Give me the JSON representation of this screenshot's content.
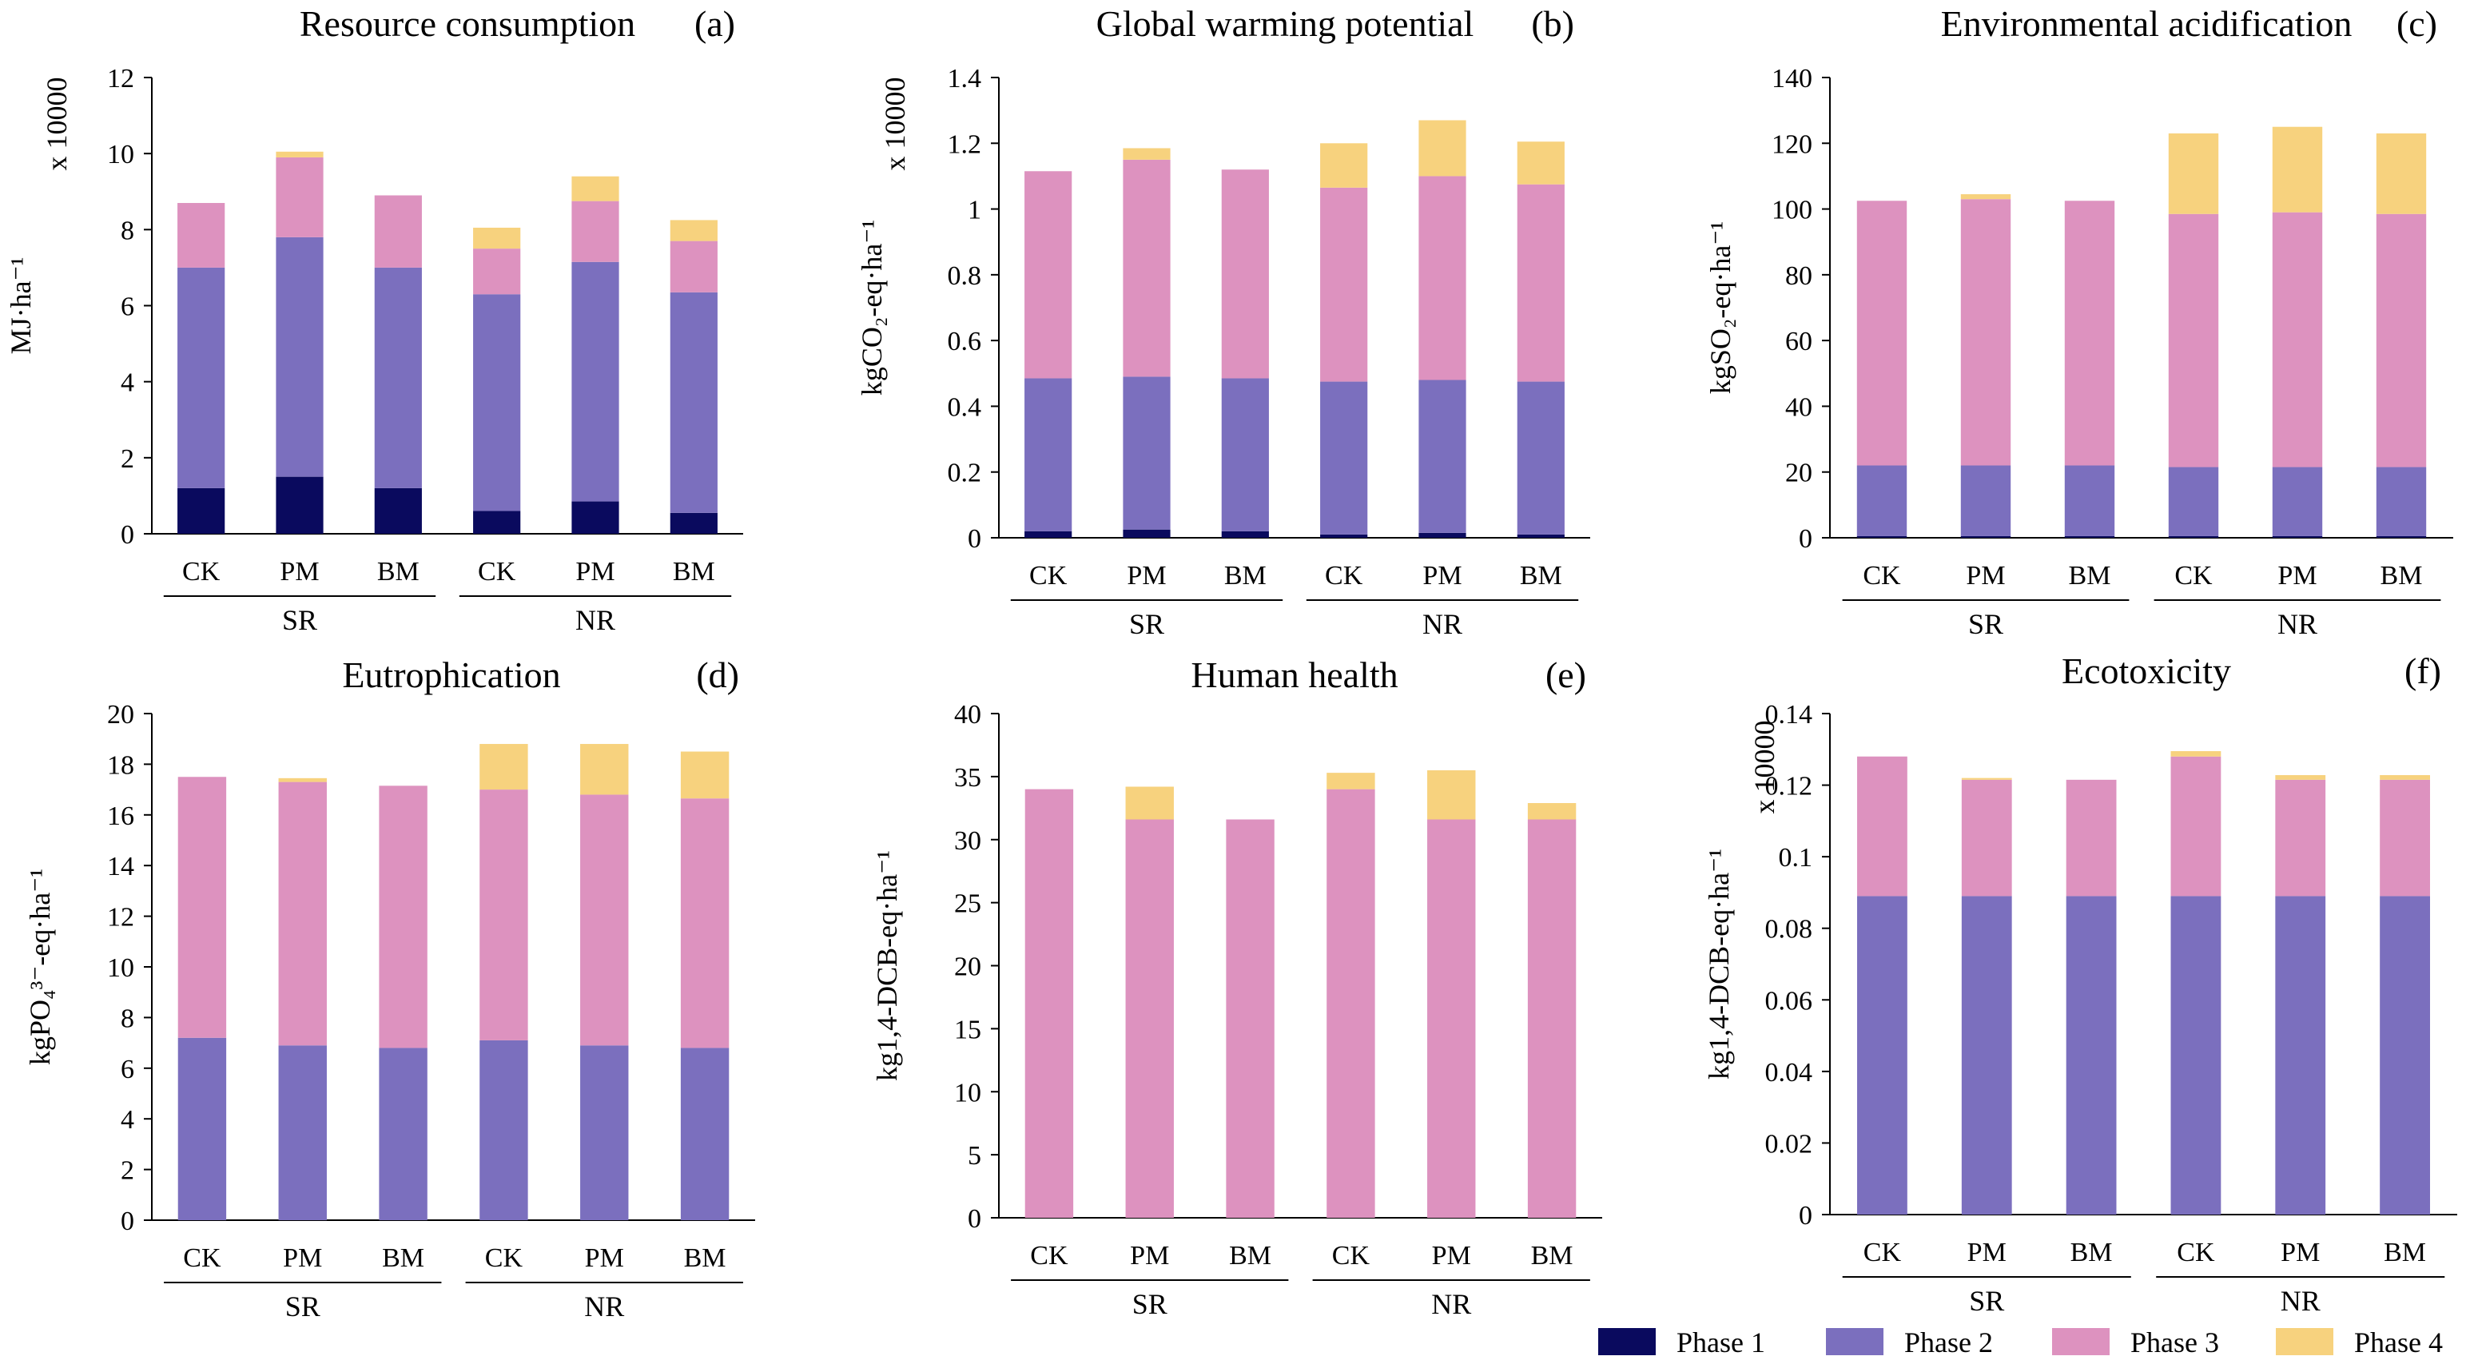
{
  "legend": [
    "Phase 1",
    "Phase 2",
    "Phase 3",
    "Phase 4"
  ],
  "colors": {
    "phase1": "#0a0a5e",
    "phase2": "#7b6fbe",
    "phase3": "#dd92bf",
    "phase4": "#f7d27e"
  },
  "chart_data": [
    {
      "id": "a",
      "type": "bar",
      "stacked": true,
      "panel_label": "(a)",
      "title": "Resource consumption",
      "ylabel": "MJ·ha⁻¹",
      "multiplier": "x 10000",
      "ylim": [
        0,
        12
      ],
      "yticks": [
        0,
        2,
        4,
        6,
        8,
        10,
        12
      ],
      "ytick_labels": [
        "0",
        "2",
        "4",
        "6",
        "8",
        "10",
        "12"
      ],
      "categories": [
        "CK",
        "PM",
        "BM",
        "CK",
        "PM",
        "BM"
      ],
      "groups": [
        {
          "label": "SR",
          "span": [
            0,
            2
          ]
        },
        {
          "label": "NR",
          "span": [
            3,
            5
          ]
        }
      ],
      "series": [
        {
          "name": "Phase 1",
          "values": [
            1.2,
            1.5,
            1.2,
            0.6,
            0.85,
            0.55
          ]
        },
        {
          "name": "Phase 2",
          "values": [
            5.8,
            6.3,
            5.8,
            5.7,
            6.3,
            5.8
          ]
        },
        {
          "name": "Phase 3",
          "values": [
            1.7,
            2.1,
            1.9,
            1.2,
            1.6,
            1.35
          ]
        },
        {
          "name": "Phase 4",
          "values": [
            0,
            0.15,
            0,
            0.55,
            0.65,
            0.55
          ]
        }
      ]
    },
    {
      "id": "b",
      "type": "bar",
      "stacked": true,
      "panel_label": "(b)",
      "title": "Global warming potential",
      "ylabel": "kgCO₂-eq·ha⁻¹",
      "multiplier": "x 10000",
      "ylim": [
        0,
        1.4
      ],
      "yticks": [
        0,
        0.2,
        0.4,
        0.6,
        0.8,
        1.0,
        1.2,
        1.4
      ],
      "ytick_labels": [
        "0",
        "0.2",
        "0.4",
        "0.6",
        "0.8",
        "1",
        "1.2",
        "1.4"
      ],
      "categories": [
        "CK",
        "PM",
        "BM",
        "CK",
        "PM",
        "BM"
      ],
      "groups": [
        {
          "label": "SR",
          "span": [
            0,
            2
          ]
        },
        {
          "label": "NR",
          "span": [
            3,
            5
          ]
        }
      ],
      "series": [
        {
          "name": "Phase 1",
          "values": [
            0.02,
            0.025,
            0.02,
            0.01,
            0.015,
            0.01
          ]
        },
        {
          "name": "Phase 2",
          "values": [
            0.465,
            0.465,
            0.465,
            0.465,
            0.465,
            0.465
          ]
        },
        {
          "name": "Phase 3",
          "values": [
            0.63,
            0.66,
            0.635,
            0.59,
            0.62,
            0.6
          ]
        },
        {
          "name": "Phase 4",
          "values": [
            0,
            0.035,
            0,
            0.135,
            0.17,
            0.13
          ]
        }
      ]
    },
    {
      "id": "c",
      "type": "bar",
      "stacked": true,
      "panel_label": "(c)",
      "title": "Environmental acidification",
      "ylabel": "kgSO₂-eq·ha⁻¹",
      "multiplier": "",
      "ylim": [
        0,
        140
      ],
      "yticks": [
        0,
        20,
        40,
        60,
        80,
        100,
        120,
        140
      ],
      "ytick_labels": [
        "0",
        "20",
        "40",
        "60",
        "80",
        "100",
        "120",
        "140"
      ],
      "categories": [
        "CK",
        "PM",
        "BM",
        "CK",
        "PM",
        "BM"
      ],
      "groups": [
        {
          "label": "SR",
          "span": [
            0,
            2
          ]
        },
        {
          "label": "NR",
          "span": [
            3,
            5
          ]
        }
      ],
      "series": [
        {
          "name": "Phase 1",
          "values": [
            0.5,
            0.5,
            0.5,
            0.5,
            0.5,
            0.5
          ]
        },
        {
          "name": "Phase 2",
          "values": [
            21.5,
            21.5,
            21.5,
            21.0,
            21.0,
            21.0
          ]
        },
        {
          "name": "Phase 3",
          "values": [
            80.5,
            81.0,
            80.5,
            77.0,
            77.5,
            77.0
          ]
        },
        {
          "name": "Phase 4",
          "values": [
            0,
            1.5,
            0,
            24.5,
            26.0,
            24.5
          ]
        }
      ]
    },
    {
      "id": "d",
      "type": "bar",
      "stacked": true,
      "panel_label": "(d)",
      "title": "Eutrophication",
      "ylabel": "kgPO₄³⁻-eq·ha⁻¹",
      "multiplier": "",
      "ylim": [
        0,
        20
      ],
      "yticks": [
        0,
        2,
        4,
        6,
        8,
        10,
        12,
        14,
        16,
        18,
        20
      ],
      "ytick_labels": [
        "0",
        "2",
        "4",
        "6",
        "8",
        "10",
        "12",
        "14",
        "16",
        "18",
        "20"
      ],
      "categories": [
        "CK",
        "PM",
        "BM",
        "CK",
        "PM",
        "BM"
      ],
      "groups": [
        {
          "label": "SR",
          "span": [
            0,
            2
          ]
        },
        {
          "label": "NR",
          "span": [
            3,
            5
          ]
        }
      ],
      "series": [
        {
          "name": "Phase 1",
          "values": [
            0,
            0,
            0,
            0,
            0,
            0
          ]
        },
        {
          "name": "Phase 2",
          "values": [
            7.2,
            6.9,
            6.8,
            7.1,
            6.9,
            6.8
          ]
        },
        {
          "name": "Phase 3",
          "values": [
            10.3,
            10.4,
            10.35,
            9.9,
            9.9,
            9.85
          ]
        },
        {
          "name": "Phase 4",
          "values": [
            0,
            0.15,
            0,
            1.8,
            2.0,
            1.85
          ]
        }
      ]
    },
    {
      "id": "e",
      "type": "bar",
      "stacked": true,
      "panel_label": "(e)",
      "title": "Human health",
      "ylabel": "kg1,4-DCB-eq·ha⁻¹",
      "multiplier": "",
      "ylim": [
        0,
        40
      ],
      "yticks": [
        0,
        5,
        10,
        15,
        20,
        25,
        30,
        35,
        40
      ],
      "ytick_labels": [
        "0",
        "5",
        "10",
        "15",
        "20",
        "25",
        "30",
        "35",
        "40"
      ],
      "categories": [
        "CK",
        "PM",
        "BM",
        "CK",
        "PM",
        "BM"
      ],
      "groups": [
        {
          "label": "SR",
          "span": [
            0,
            2
          ]
        },
        {
          "label": "NR",
          "span": [
            3,
            5
          ]
        }
      ],
      "series": [
        {
          "name": "Phase 1",
          "values": [
            0,
            0,
            0,
            0,
            0,
            0
          ]
        },
        {
          "name": "Phase 2",
          "values": [
            0,
            0,
            0,
            0,
            0,
            0
          ]
        },
        {
          "name": "Phase 3",
          "values": [
            34.0,
            31.6,
            31.6,
            34.0,
            31.6,
            31.6
          ]
        },
        {
          "name": "Phase 4",
          "values": [
            0,
            2.6,
            0,
            1.3,
            3.9,
            1.3
          ]
        }
      ]
    },
    {
      "id": "f",
      "type": "bar",
      "stacked": true,
      "panel_label": "(f)",
      "title": "Ecotoxicity",
      "ylabel": "kg1,4-DCB-eq·ha⁻¹",
      "multiplier": "x 10000",
      "ylim": [
        0,
        0.14
      ],
      "yticks": [
        0,
        0.02,
        0.04,
        0.06,
        0.08,
        0.1,
        0.12,
        0.14
      ],
      "ytick_labels": [
        "0",
        "0.02",
        "0.04",
        "0.06",
        "0.08",
        "0.1",
        "0.12",
        "0.14"
      ],
      "categories": [
        "CK",
        "PM",
        "BM",
        "CK",
        "PM",
        "BM"
      ],
      "groups": [
        {
          "label": "SR",
          "span": [
            0,
            2
          ]
        },
        {
          "label": "NR",
          "span": [
            3,
            5
          ]
        }
      ],
      "series": [
        {
          "name": "Phase 1",
          "values": [
            0,
            0,
            0,
            0,
            0,
            0
          ]
        },
        {
          "name": "Phase 2",
          "values": [
            0.089,
            0.089,
            0.089,
            0.089,
            0.089,
            0.089
          ]
        },
        {
          "name": "Phase 3",
          "values": [
            0.039,
            0.0325,
            0.0325,
            0.039,
            0.0325,
            0.0325
          ]
        },
        {
          "name": "Phase 4",
          "values": [
            0,
            0.0005,
            0,
            0.0015,
            0.0013,
            0.0013
          ]
        }
      ]
    }
  ]
}
